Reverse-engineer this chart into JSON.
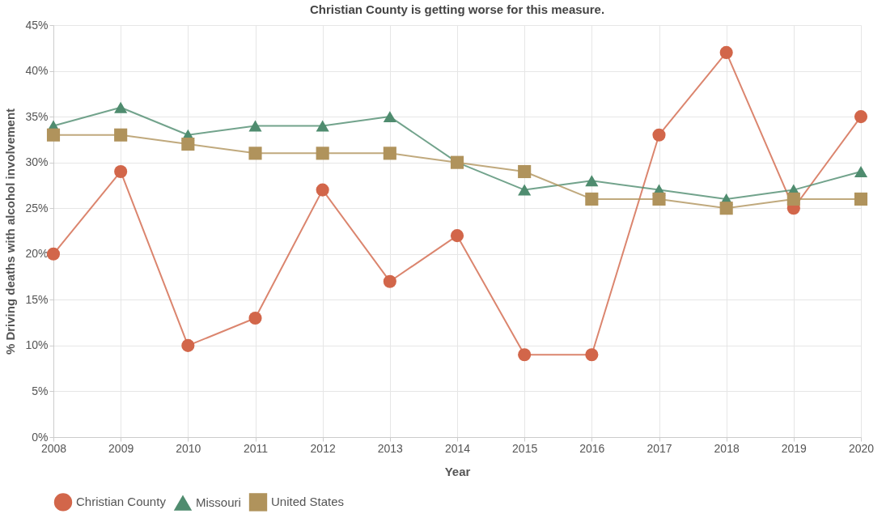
{
  "chart_data": {
    "type": "line",
    "title": "Christian County is getting worse for this measure.",
    "xlabel": "Year",
    "ylabel": "% Driving deaths with alcohol involvement",
    "categories": [
      "2008",
      "2009",
      "2010",
      "2011",
      "2012",
      "2013",
      "2014",
      "2015",
      "2016",
      "2017",
      "2018",
      "2019",
      "2020"
    ],
    "series": [
      {
        "name": "Christian County",
        "color": "#d2664a",
        "marker": "circle",
        "values": [
          20,
          29,
          10,
          13,
          27,
          17,
          22,
          9,
          9,
          33,
          42,
          25,
          35
        ]
      },
      {
        "name": "Missouri",
        "color": "#4f8c6f",
        "marker": "triangle",
        "values": [
          34,
          36,
          33,
          34,
          34,
          35,
          30,
          27,
          28,
          27,
          26,
          27,
          29
        ]
      },
      {
        "name": "United States",
        "color": "#b0935c",
        "marker": "square",
        "values": [
          33,
          33,
          32,
          31,
          31,
          31,
          30,
          29,
          26,
          26,
          25,
          26,
          26
        ]
      }
    ],
    "ylim": [
      0,
      45
    ],
    "yticks": [
      {
        "value": 0,
        "label": "0%"
      },
      {
        "value": 5,
        "label": "5%"
      },
      {
        "value": 10,
        "label": "10%"
      },
      {
        "value": 15,
        "label": "15%"
      },
      {
        "value": 20,
        "label": "20%"
      },
      {
        "value": 25,
        "label": "25%"
      },
      {
        "value": 30,
        "label": "30%"
      },
      {
        "value": 35,
        "label": "35%"
      },
      {
        "value": 40,
        "label": "40%"
      },
      {
        "value": 45,
        "label": "45%"
      }
    ],
    "grid": true,
    "legend": "bottom",
    "line_style": "solid"
  }
}
